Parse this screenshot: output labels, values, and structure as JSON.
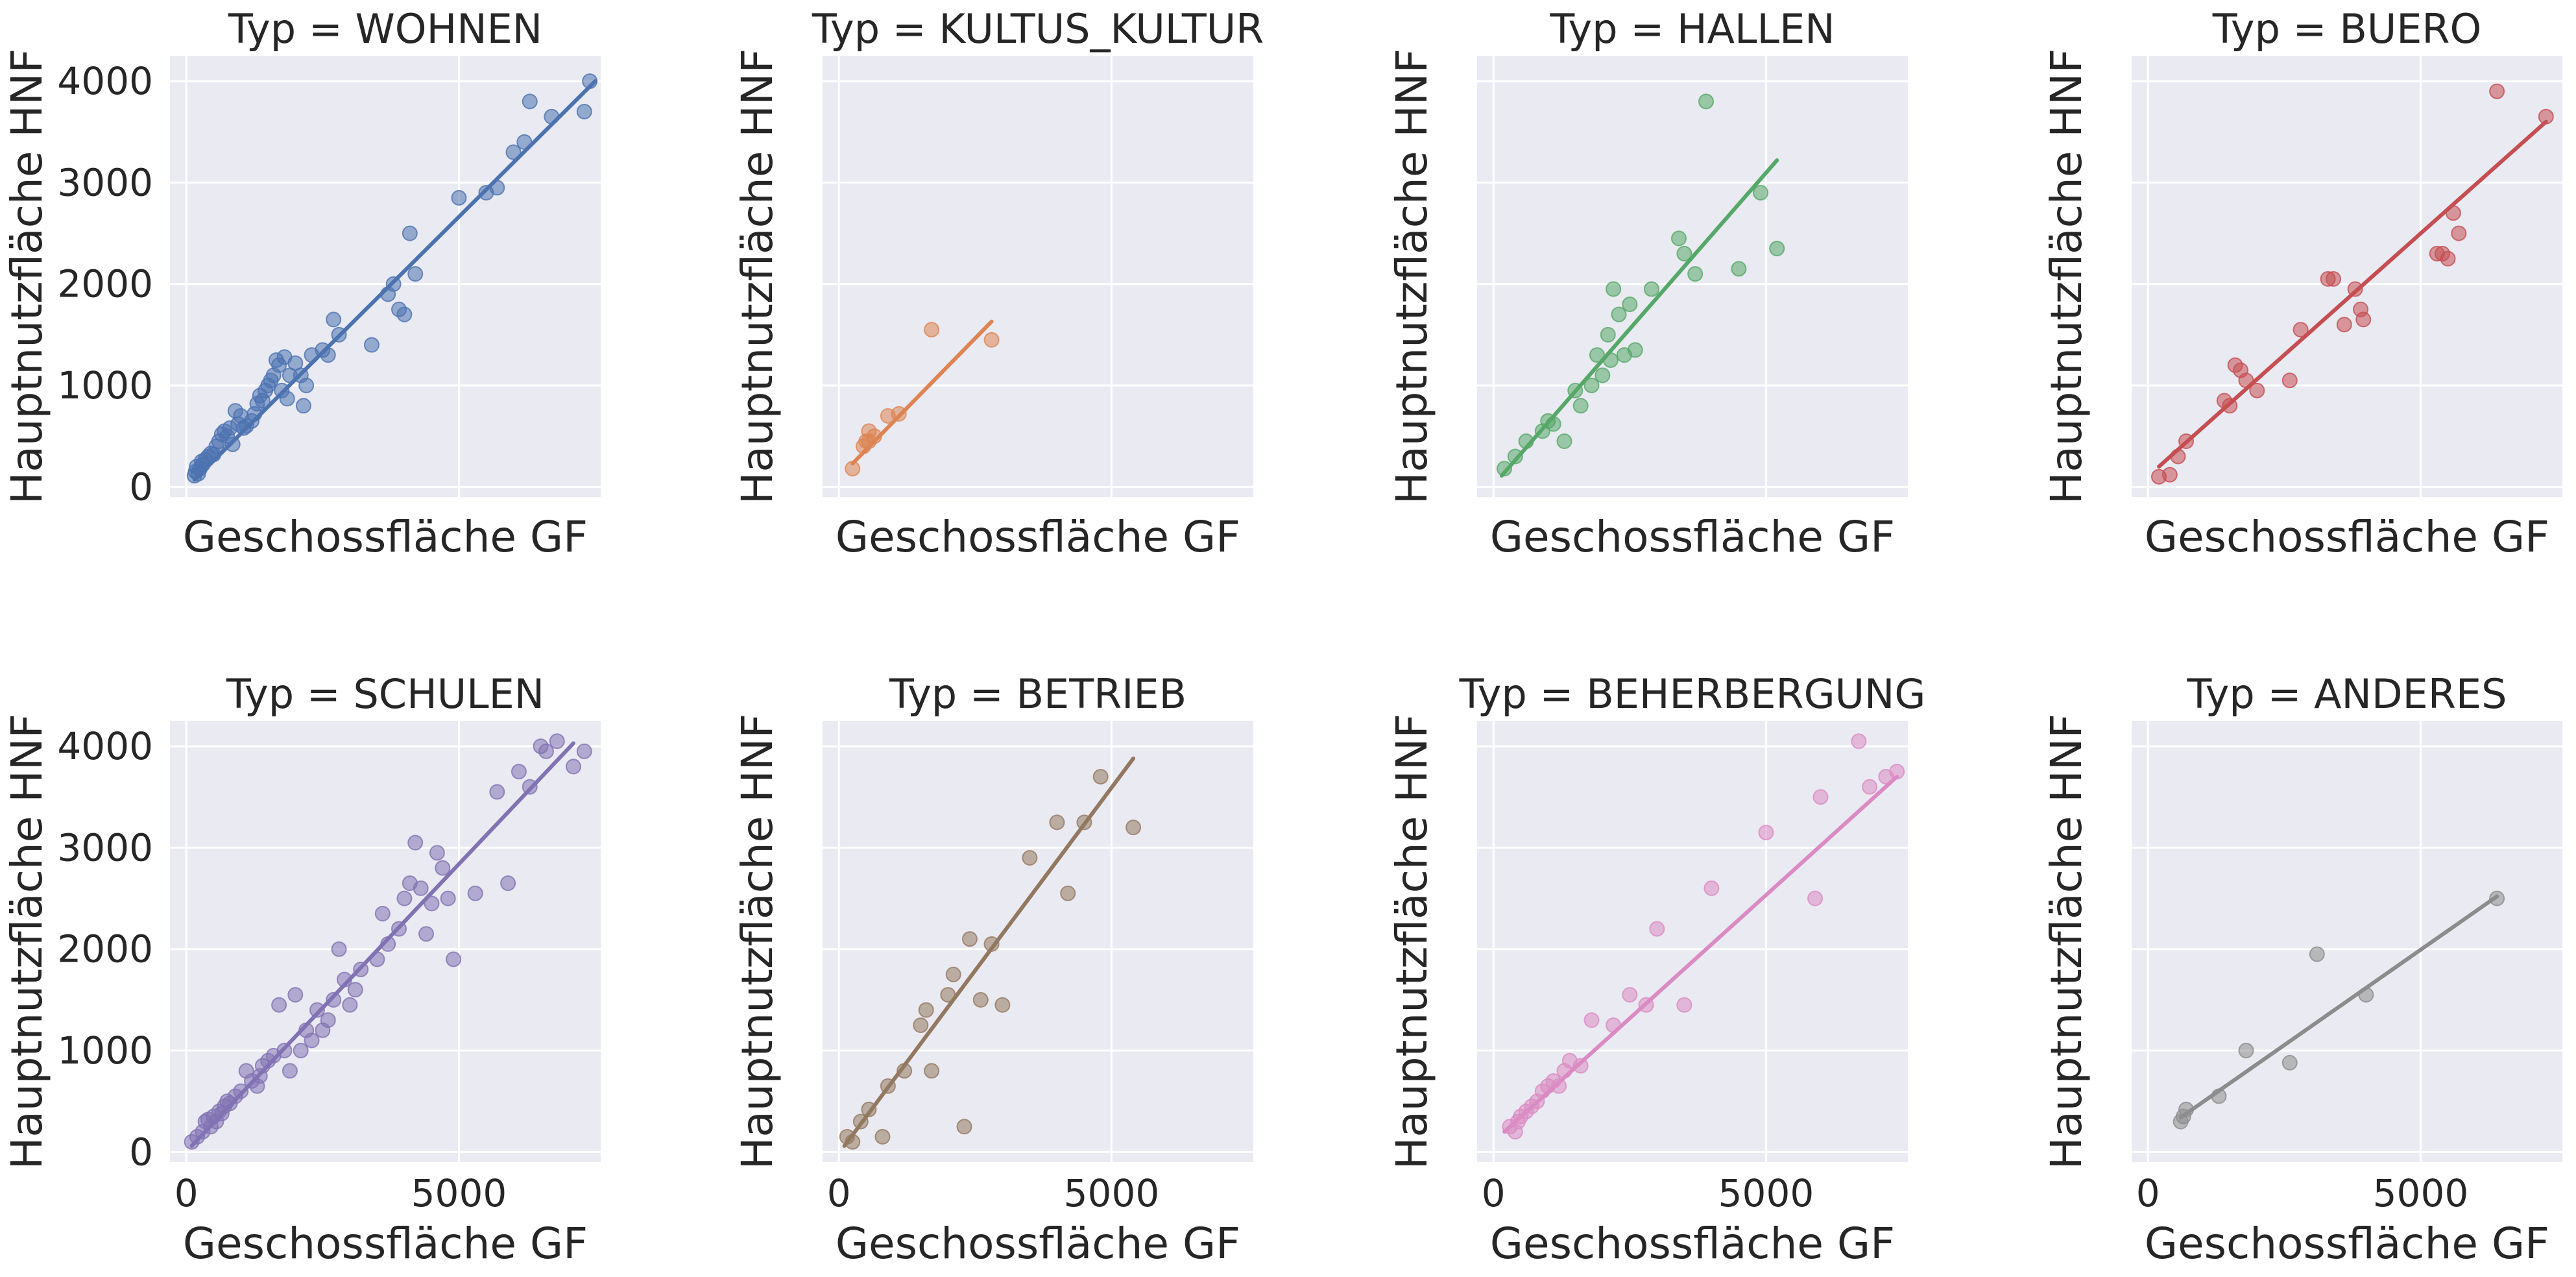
{
  "chart_data": {
    "type": "scatter",
    "layout": "facet-grid-2x4",
    "sharex": true,
    "sharey": true,
    "xlabel": "Geschossfläche GF",
    "ylabel": "Hauptnutzfläche HNF",
    "xlim": [
      -300,
      7600
    ],
    "ylim": [
      -100,
      4250
    ],
    "xticks": [
      0,
      5000
    ],
    "yticks": [
      0,
      1000,
      2000,
      3000,
      4000
    ],
    "grid": true,
    "regression_line": true,
    "panels": [
      {
        "title": "Typ = WOHNEN",
        "color": "#4c72b0",
        "points": [
          [
            150,
            110
          ],
          [
            170,
            150
          ],
          [
            190,
            200
          ],
          [
            220,
            130
          ],
          [
            250,
            180
          ],
          [
            280,
            250
          ],
          [
            300,
            220
          ],
          [
            350,
            270
          ],
          [
            400,
            300
          ],
          [
            450,
            330
          ],
          [
            500,
            320
          ],
          [
            550,
            400
          ],
          [
            600,
            450
          ],
          [
            650,
            520
          ],
          [
            700,
            550
          ],
          [
            750,
            500
          ],
          [
            800,
            580
          ],
          [
            850,
            420
          ],
          [
            900,
            750
          ],
          [
            950,
            620
          ],
          [
            1000,
            700
          ],
          [
            1050,
            580
          ],
          [
            1100,
            600
          ],
          [
            1200,
            650
          ],
          [
            1250,
            720
          ],
          [
            1300,
            820
          ],
          [
            1350,
            900
          ],
          [
            1400,
            850
          ],
          [
            1450,
            950
          ],
          [
            1500,
            1000
          ],
          [
            1550,
            1050
          ],
          [
            1600,
            1100
          ],
          [
            1650,
            1250
          ],
          [
            1700,
            1200
          ],
          [
            1750,
            950
          ],
          [
            1800,
            1280
          ],
          [
            1850,
            870
          ],
          [
            1900,
            1100
          ],
          [
            2000,
            1220
          ],
          [
            2100,
            1100
          ],
          [
            2150,
            800
          ],
          [
            2200,
            1000
          ],
          [
            2300,
            1300
          ],
          [
            2500,
            1350
          ],
          [
            2600,
            1300
          ],
          [
            2700,
            1650
          ],
          [
            2800,
            1500
          ],
          [
            3400,
            1400
          ],
          [
            3700,
            1900
          ],
          [
            3800,
            2000
          ],
          [
            3900,
            1750
          ],
          [
            4000,
            1700
          ],
          [
            4100,
            2500
          ],
          [
            4200,
            2100
          ],
          [
            5000,
            2850
          ],
          [
            5500,
            2900
          ],
          [
            5700,
            2950
          ],
          [
            6000,
            3300
          ],
          [
            6200,
            3400
          ],
          [
            6300,
            3800
          ],
          [
            6700,
            3650
          ],
          [
            7300,
            3700
          ],
          [
            7400,
            4000
          ]
        ],
        "line": [
          [
            150,
            70
          ],
          [
            7500,
            4000
          ]
        ]
      },
      {
        "title": "Typ = KULTUS_KULTUR",
        "color": "#dd8452",
        "points": [
          [
            250,
            180
          ],
          [
            450,
            400
          ],
          [
            500,
            450
          ],
          [
            550,
            450
          ],
          [
            550,
            550
          ],
          [
            650,
            500
          ],
          [
            900,
            700
          ],
          [
            1100,
            720
          ],
          [
            1700,
            1550
          ],
          [
            2800,
            1450
          ]
        ],
        "line": [
          [
            250,
            230
          ],
          [
            2800,
            1630
          ]
        ]
      },
      {
        "title": "Typ = HALLEN",
        "color": "#55a868",
        "points": [
          [
            200,
            180
          ],
          [
            400,
            300
          ],
          [
            600,
            450
          ],
          [
            900,
            550
          ],
          [
            1000,
            650
          ],
          [
            1100,
            620
          ],
          [
            1300,
            450
          ],
          [
            1500,
            950
          ],
          [
            1600,
            800
          ],
          [
            1800,
            1000
          ],
          [
            1900,
            1300
          ],
          [
            2000,
            1100
          ],
          [
            2100,
            1500
          ],
          [
            2150,
            1250
          ],
          [
            2200,
            1950
          ],
          [
            2300,
            1700
          ],
          [
            2400,
            1300
          ],
          [
            2500,
            1800
          ],
          [
            2600,
            1350
          ],
          [
            2900,
            1950
          ],
          [
            3400,
            2450
          ],
          [
            3500,
            2300
          ],
          [
            3700,
            2100
          ],
          [
            3900,
            3800
          ],
          [
            4500,
            2150
          ],
          [
            4900,
            2900
          ],
          [
            5200,
            2350
          ]
        ],
        "line": [
          [
            150,
            110
          ],
          [
            5200,
            3220
          ]
        ]
      },
      {
        "title": "Typ = BUERO",
        "color": "#c44e52",
        "points": [
          [
            200,
            100
          ],
          [
            400,
            120
          ],
          [
            550,
            300
          ],
          [
            700,
            450
          ],
          [
            1400,
            850
          ],
          [
            1500,
            800
          ],
          [
            1600,
            1200
          ],
          [
            1700,
            1150
          ],
          [
            1800,
            1050
          ],
          [
            2000,
            950
          ],
          [
            2600,
            1050
          ],
          [
            2800,
            1550
          ],
          [
            3300,
            2050
          ],
          [
            3400,
            2050
          ],
          [
            3600,
            1600
          ],
          [
            3800,
            1950
          ],
          [
            3900,
            1750
          ],
          [
            3950,
            1650
          ],
          [
            5300,
            2300
          ],
          [
            5400,
            2300
          ],
          [
            5500,
            2250
          ],
          [
            5600,
            2700
          ],
          [
            5700,
            2500
          ],
          [
            6400,
            3900
          ],
          [
            7300,
            3650
          ]
        ],
        "line": [
          [
            200,
            200
          ],
          [
            7300,
            3600
          ]
        ]
      },
      {
        "title": "Typ = SCHULEN",
        "color": "#8172b3",
        "points": [
          [
            100,
            100
          ],
          [
            200,
            150
          ],
          [
            300,
            200
          ],
          [
            350,
            300
          ],
          [
            400,
            320
          ],
          [
            450,
            250
          ],
          [
            500,
            350
          ],
          [
            550,
            300
          ],
          [
            600,
            400
          ],
          [
            650,
            380
          ],
          [
            700,
            450
          ],
          [
            750,
            500
          ],
          [
            800,
            480
          ],
          [
            900,
            550
          ],
          [
            1000,
            600
          ],
          [
            1100,
            800
          ],
          [
            1200,
            700
          ],
          [
            1300,
            650
          ],
          [
            1350,
            750
          ],
          [
            1400,
            850
          ],
          [
            1500,
            900
          ],
          [
            1600,
            950
          ],
          [
            1700,
            1450
          ],
          [
            1800,
            1000
          ],
          [
            1900,
            800
          ],
          [
            2000,
            1550
          ],
          [
            2100,
            1000
          ],
          [
            2200,
            1200
          ],
          [
            2300,
            1100
          ],
          [
            2400,
            1400
          ],
          [
            2500,
            1200
          ],
          [
            2600,
            1300
          ],
          [
            2700,
            1500
          ],
          [
            2800,
            2000
          ],
          [
            2900,
            1700
          ],
          [
            3000,
            1450
          ],
          [
            3100,
            1600
          ],
          [
            3200,
            1800
          ],
          [
            3500,
            1900
          ],
          [
            3600,
            2350
          ],
          [
            3700,
            2050
          ],
          [
            3900,
            2200
          ],
          [
            4000,
            2500
          ],
          [
            4100,
            2650
          ],
          [
            4200,
            3050
          ],
          [
            4300,
            2600
          ],
          [
            4400,
            2150
          ],
          [
            4500,
            2450
          ],
          [
            4600,
            2950
          ],
          [
            4700,
            2800
          ],
          [
            4800,
            2500
          ],
          [
            4900,
            1900
          ],
          [
            5300,
            2550
          ],
          [
            5700,
            3550
          ],
          [
            5900,
            2650
          ],
          [
            6100,
            3750
          ],
          [
            6300,
            3600
          ],
          [
            6500,
            4000
          ],
          [
            6600,
            3950
          ],
          [
            6800,
            4050
          ],
          [
            7100,
            3800
          ],
          [
            7300,
            3950
          ]
        ],
        "line": [
          [
            100,
            60
          ],
          [
            7100,
            4030
          ]
        ]
      },
      {
        "title": "Typ = BETRIEB",
        "color": "#937860",
        "points": [
          [
            150,
            150
          ],
          [
            250,
            100
          ],
          [
            400,
            300
          ],
          [
            550,
            420
          ],
          [
            800,
            150
          ],
          [
            900,
            650
          ],
          [
            1200,
            800
          ],
          [
            1500,
            1250
          ],
          [
            1600,
            1400
          ],
          [
            1700,
            800
          ],
          [
            2000,
            1550
          ],
          [
            2100,
            1750
          ],
          [
            2300,
            250
          ],
          [
            2400,
            2100
          ],
          [
            2600,
            1500
          ],
          [
            2800,
            2050
          ],
          [
            3000,
            1450
          ],
          [
            3500,
            2900
          ],
          [
            4000,
            3250
          ],
          [
            4200,
            2550
          ],
          [
            4500,
            3250
          ],
          [
            4800,
            3700
          ],
          [
            5400,
            3200
          ]
        ],
        "line": [
          [
            100,
            60
          ],
          [
            5400,
            3880
          ]
        ]
      },
      {
        "title": "Typ = BEHERBERGUNG",
        "color": "#da8bc3",
        "points": [
          [
            300,
            250
          ],
          [
            400,
            200
          ],
          [
            450,
            300
          ],
          [
            500,
            350
          ],
          [
            600,
            400
          ],
          [
            700,
            450
          ],
          [
            800,
            500
          ],
          [
            900,
            600
          ],
          [
            1000,
            650
          ],
          [
            1100,
            700
          ],
          [
            1200,
            650
          ],
          [
            1300,
            800
          ],
          [
            1400,
            900
          ],
          [
            1600,
            850
          ],
          [
            1800,
            1300
          ],
          [
            2200,
            1250
          ],
          [
            2500,
            1550
          ],
          [
            2800,
            1450
          ],
          [
            3000,
            2200
          ],
          [
            3500,
            1450
          ],
          [
            4000,
            2600
          ],
          [
            5000,
            3150
          ],
          [
            5900,
            2500
          ],
          [
            6000,
            3500
          ],
          [
            6700,
            4050
          ],
          [
            6900,
            3600
          ],
          [
            7200,
            3700
          ],
          [
            7400,
            3750
          ]
        ],
        "line": [
          [
            200,
            200
          ],
          [
            7400,
            3700
          ]
        ]
      },
      {
        "title": "Typ = ANDERES",
        "color": "#8c8c8c",
        "points": [
          [
            600,
            300
          ],
          [
            650,
            350
          ],
          [
            700,
            420
          ],
          [
            1300,
            550
          ],
          [
            1800,
            1000
          ],
          [
            2600,
            880
          ],
          [
            3100,
            1950
          ],
          [
            4000,
            1550
          ],
          [
            6400,
            2500
          ]
        ],
        "line": [
          [
            600,
            340
          ],
          [
            6400,
            2520
          ]
        ]
      }
    ]
  }
}
